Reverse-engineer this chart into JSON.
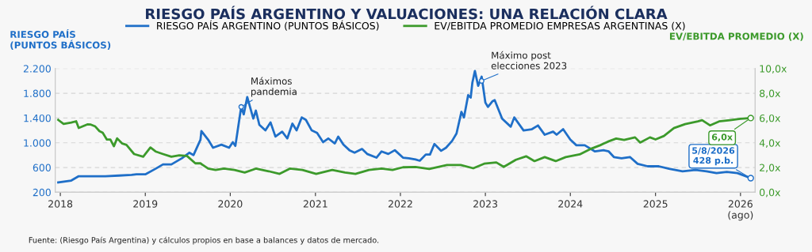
{
  "chart_data": {
    "type": "line",
    "title": "RIESGO PAÍS ARGENTINO Y VALUACIONES: UNA RELACIÓN CLARA",
    "ylabel": "RIESGO PAÍS\n(PUNTOS BÁSICOS)",
    "y2label": "EV/EBITDA PROMEDIO (X)",
    "ylim": [
      200,
      2200
    ],
    "yticks": [
      {
        "value": 200,
        "label": "200"
      },
      {
        "value": 600,
        "label": "600"
      },
      {
        "value": 1000,
        "label": "1.000"
      },
      {
        "value": 1400,
        "label": "1.400"
      },
      {
        "value": 1800,
        "label": "1.800"
      },
      {
        "value": 2200,
        "label": "2.200"
      }
    ],
    "y2lim": [
      0,
      10
    ],
    "y2ticks": [
      {
        "value": 0,
        "label": "0,0x"
      },
      {
        "value": 2,
        "label": "2,0x"
      },
      {
        "value": 4,
        "label": "4,0x"
      },
      {
        "value": 6,
        "label": "6,0x"
      },
      {
        "value": 8,
        "label": "8,0x"
      },
      {
        "value": 10,
        "label": "10,0x"
      }
    ],
    "xlim": [
      "2017-12-10",
      "2026-03-05"
    ],
    "xticks": [
      {
        "value": "2018-01-01",
        "label": "2018"
      },
      {
        "value": "2019-01-01",
        "label": "2019"
      },
      {
        "value": "2020-01-01",
        "label": "2020"
      },
      {
        "value": "2021-01-01",
        "label": "2021"
      },
      {
        "value": "2022-01-01",
        "label": "2022"
      },
      {
        "value": "2023-01-01",
        "label": "2023"
      },
      {
        "value": "2024-01-01",
        "label": "2024"
      },
      {
        "value": "2025-01-01",
        "label": "2025"
      },
      {
        "value": "2026-01-01",
        "label": "2026\n(ago)"
      }
    ],
    "grid": "y",
    "legend": "top",
    "line_style": "solid",
    "annotations": [
      {
        "text": "Máximos\npandemia",
        "x": "2020-02-17",
        "y": 1580
      },
      {
        "text": "Máximo post\nelecciones 2023",
        "x": "2022-12-16",
        "y": 2000
      },
      "Fuente: (Riesgo País Argentina) y cálculos propios en base a balances y datos de mercado."
    ],
    "series": [
      {
        "name": "RIESGO PAÍS ARGENTINO (PUNTOS BÁSICOS)",
        "color": "#1f6fc8",
        "axis": "y",
        "x": [
          "2017-12-23",
          "2018-02-17",
          "2018-03-21",
          "2018-05-08",
          "2018-07-13",
          "2018-09-10",
          "2018-11-03",
          "2018-11-24",
          "2019-01-01",
          "2019-02-14",
          "2019-03-18",
          "2019-04-23",
          "2019-06-07",
          "2019-07-09",
          "2019-07-27",
          "2019-08-26",
          "2019-08-30",
          "2019-09-28",
          "2019-10-19",
          "2019-11-24",
          "2019-12-27",
          "2020-01-12",
          "2020-01-23",
          "2020-02-17",
          "2020-02-28",
          "2020-03-14",
          "2020-04-09",
          "2020-04-20",
          "2020-05-05",
          "2020-05-31",
          "2020-06-22",
          "2020-07-13",
          "2020-08-11",
          "2020-09-02",
          "2020-09-24",
          "2020-10-12",
          "2020-11-03",
          "2020-11-21",
          "2020-12-16",
          "2021-01-08",
          "2021-02-03",
          "2021-02-25",
          "2021-03-25",
          "2021-04-09",
          "2021-05-01",
          "2021-05-27",
          "2021-06-18",
          "2021-07-20",
          "2021-08-11",
          "2021-09-20",
          "2021-10-12",
          "2021-11-10",
          "2021-12-08",
          "2022-01-12",
          "2022-02-06",
          "2022-03-07",
          "2022-03-25",
          "2022-04-20",
          "2022-05-08",
          "2022-05-27",
          "2022-06-25",
          "2022-07-16",
          "2022-08-11",
          "2022-08-30",
          "2022-09-20",
          "2022-10-01",
          "2022-10-19",
          "2022-10-30",
          "2022-11-06",
          "2022-11-17",
          "2022-12-01",
          "2022-12-16",
          "2023-01-01",
          "2023-01-12",
          "2023-01-31",
          "2023-02-10",
          "2023-03-14",
          "2023-04-20",
          "2023-05-05",
          "2023-06-14",
          "2023-07-20",
          "2023-08-15",
          "2023-09-13",
          "2023-10-19",
          "2023-11-03",
          "2023-12-01",
          "2024-01-01",
          "2024-01-27",
          "2024-03-03",
          "2024-04-16",
          "2024-05-23",
          "2024-06-14",
          "2024-07-06",
          "2024-08-08",
          "2024-09-13",
          "2024-10-16",
          "2024-11-28",
          "2025-01-15",
          "2025-02-28",
          "2025-04-27",
          "2025-06-22",
          "2025-08-08",
          "2025-09-20",
          "2025-11-03",
          "2025-12-19",
          "2026-02-14"
        ],
        "values": [
          360,
          390,
          460,
          460,
          460,
          470,
          480,
          490,
          490,
          580,
          650,
          650,
          750,
          840,
          800,
          1050,
          1190,
          1050,
          920,
          970,
          920,
          1010,
          950,
          1580,
          1460,
          1740,
          1390,
          1520,
          1290,
          1200,
          1330,
          1100,
          1180,
          1070,
          1310,
          1200,
          1410,
          1370,
          1200,
          1160,
          1010,
          1070,
          990,
          1100,
          970,
          880,
          840,
          900,
          820,
          760,
          860,
          820,
          880,
          760,
          750,
          730,
          710,
          810,
          810,
          980,
          870,
          920,
          1030,
          1150,
          1500,
          1410,
          1770,
          1730,
          1970,
          2160,
          1920,
          2070,
          1650,
          1580,
          1670,
          1690,
          1390,
          1260,
          1410,
          1200,
          1220,
          1280,
          1130,
          1180,
          1130,
          1220,
          1050,
          960,
          960,
          860,
          880,
          860,
          770,
          750,
          770,
          660,
          620,
          620,
          580,
          540,
          560,
          540,
          510,
          530,
          510,
          428
        ],
        "value_labels": [
          null,
          null,
          null,
          null,
          null,
          null,
          null,
          null,
          null,
          null,
          null,
          null,
          null,
          null,
          null,
          null,
          null,
          null,
          null,
          null,
          null,
          null,
          null,
          null,
          null,
          null,
          null,
          null,
          null,
          null,
          null,
          null,
          null,
          null,
          null,
          null,
          null,
          null,
          null,
          null,
          null,
          null,
          null,
          null,
          null,
          null,
          null,
          null,
          null,
          null,
          null,
          null,
          null,
          null,
          null,
          null,
          null,
          null,
          null,
          null,
          null,
          null,
          null,
          null,
          null,
          null,
          null,
          null,
          null,
          null,
          null,
          null,
          null,
          null,
          null,
          null,
          null,
          null,
          null,
          null,
          null,
          null,
          null,
          null,
          null,
          null,
          null,
          null,
          null,
          null,
          null,
          null,
          null,
          null,
          null,
          null,
          null,
          null,
          null,
          null,
          null,
          null,
          null,
          null,
          null,
          "5/8/2026\n428 p.b."
        ]
      },
      {
        "name": "EV/EBITDA PROMEDIO EMPRESAS ARGENTINAS (X)",
        "color": "#3c9a2b",
        "axis": "y2",
        "x": [
          "2017-12-23",
          "2018-01-15",
          "2018-02-17",
          "2018-03-10",
          "2018-03-21",
          "2018-04-27",
          "2018-05-12",
          "2018-05-31",
          "2018-06-18",
          "2018-07-02",
          "2018-07-20",
          "2018-08-04",
          "2018-08-19",
          "2018-09-02",
          "2018-09-24",
          "2018-10-12",
          "2018-11-14",
          "2018-12-23",
          "2019-01-23",
          "2019-02-14",
          "2019-03-18",
          "2019-04-23",
          "2019-05-27",
          "2019-06-29",
          "2019-08-04",
          "2019-08-26",
          "2019-09-28",
          "2019-10-30",
          "2019-12-05",
          "2020-01-19",
          "2020-03-03",
          "2020-04-20",
          "2020-06-14",
          "2020-07-31",
          "2020-09-13",
          "2020-11-06",
          "2021-01-04",
          "2021-03-14",
          "2021-05-08",
          "2021-06-22",
          "2021-08-19",
          "2021-10-12",
          "2021-11-28",
          "2022-01-12",
          "2022-03-07",
          "2022-05-05",
          "2022-07-20",
          "2022-09-17",
          "2022-11-10",
          "2022-12-27",
          "2023-02-17",
          "2023-03-21",
          "2023-05-12",
          "2023-06-25",
          "2023-07-31",
          "2023-09-13",
          "2023-10-30",
          "2023-12-12",
          "2024-02-10",
          "2024-03-25",
          "2024-05-08",
          "2024-06-14",
          "2024-07-16",
          "2024-08-19",
          "2024-10-05",
          "2024-10-27",
          "2024-12-08",
          "2025-01-01",
          "2025-02-06",
          "2025-03-21",
          "2025-05-08",
          "2025-07-02",
          "2025-07-20",
          "2025-08-23",
          "2025-10-01",
          "2025-11-17",
          "2026-01-01",
          "2026-02-14"
        ],
        "values": [
          5.85,
          5.53,
          5.64,
          5.74,
          5.2,
          5.49,
          5.47,
          5.32,
          4.94,
          4.81,
          4.26,
          4.26,
          3.72,
          4.36,
          3.94,
          3.83,
          3.09,
          2.87,
          3.62,
          3.3,
          3.09,
          2.87,
          2.98,
          2.94,
          2.34,
          2.34,
          1.91,
          1.81,
          1.91,
          1.81,
          1.6,
          1.91,
          1.7,
          1.49,
          1.91,
          1.81,
          1.49,
          1.81,
          1.6,
          1.49,
          1.81,
          1.91,
          1.81,
          2.02,
          2.05,
          1.88,
          2.2,
          2.2,
          1.94,
          2.31,
          2.41,
          2.05,
          2.63,
          2.91,
          2.52,
          2.84,
          2.52,
          2.84,
          3.06,
          3.48,
          3.8,
          4.12,
          4.34,
          4.23,
          4.44,
          4.02,
          4.44,
          4.27,
          4.55,
          5.19,
          5.51,
          5.73,
          5.83,
          5.41,
          5.73,
          5.83,
          5.94,
          6.0
        ],
        "value_labels": [
          null,
          null,
          null,
          null,
          null,
          null,
          null,
          null,
          null,
          null,
          null,
          null,
          null,
          null,
          null,
          null,
          null,
          null,
          null,
          null,
          null,
          null,
          null,
          null,
          null,
          null,
          null,
          null,
          null,
          null,
          null,
          null,
          null,
          null,
          null,
          null,
          null,
          null,
          null,
          null,
          null,
          null,
          null,
          null,
          null,
          null,
          null,
          null,
          null,
          null,
          null,
          null,
          null,
          null,
          null,
          null,
          null,
          null,
          null,
          null,
          null,
          null,
          null,
          null,
          null,
          null,
          null,
          null,
          null,
          null,
          null,
          null,
          null,
          null,
          null,
          null,
          null,
          "6,0x"
        ]
      }
    ]
  }
}
